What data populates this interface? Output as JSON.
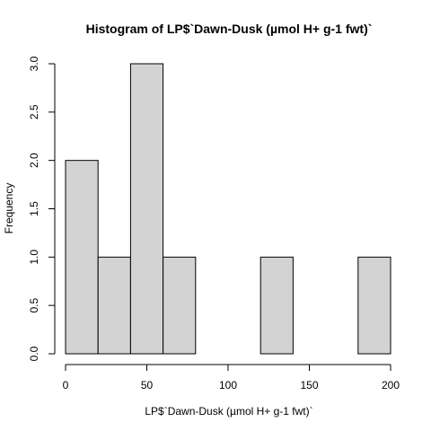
{
  "chart_data": {
    "type": "bar",
    "title": "Histogram of LP$`Dawn-Dusk (µmol H+ g-1 fwt)`",
    "xlabel": "LP$`Dawn-Dusk (µmol H+ g-1 fwt)`",
    "ylabel": "Frequency",
    "bins": [
      {
        "start": 0,
        "end": 20,
        "count": 2
      },
      {
        "start": 20,
        "end": 40,
        "count": 1
      },
      {
        "start": 40,
        "end": 60,
        "count": 3
      },
      {
        "start": 60,
        "end": 80,
        "count": 1
      },
      {
        "start": 80,
        "end": 100,
        "count": 0
      },
      {
        "start": 100,
        "end": 120,
        "count": 0
      },
      {
        "start": 120,
        "end": 140,
        "count": 1
      },
      {
        "start": 140,
        "end": 160,
        "count": 0
      },
      {
        "start": 160,
        "end": 180,
        "count": 0
      },
      {
        "start": 180,
        "end": 200,
        "count": 1
      }
    ],
    "xlim": [
      0,
      200
    ],
    "ylim": [
      0,
      3
    ],
    "x_ticks": [
      "0",
      "50",
      "100",
      "150",
      "200"
    ],
    "y_ticks": [
      "0.0",
      "0.5",
      "1.0",
      "1.5",
      "2.0",
      "2.5",
      "3.0"
    ],
    "bar_color": "#d3d3d3",
    "grid": false
  }
}
